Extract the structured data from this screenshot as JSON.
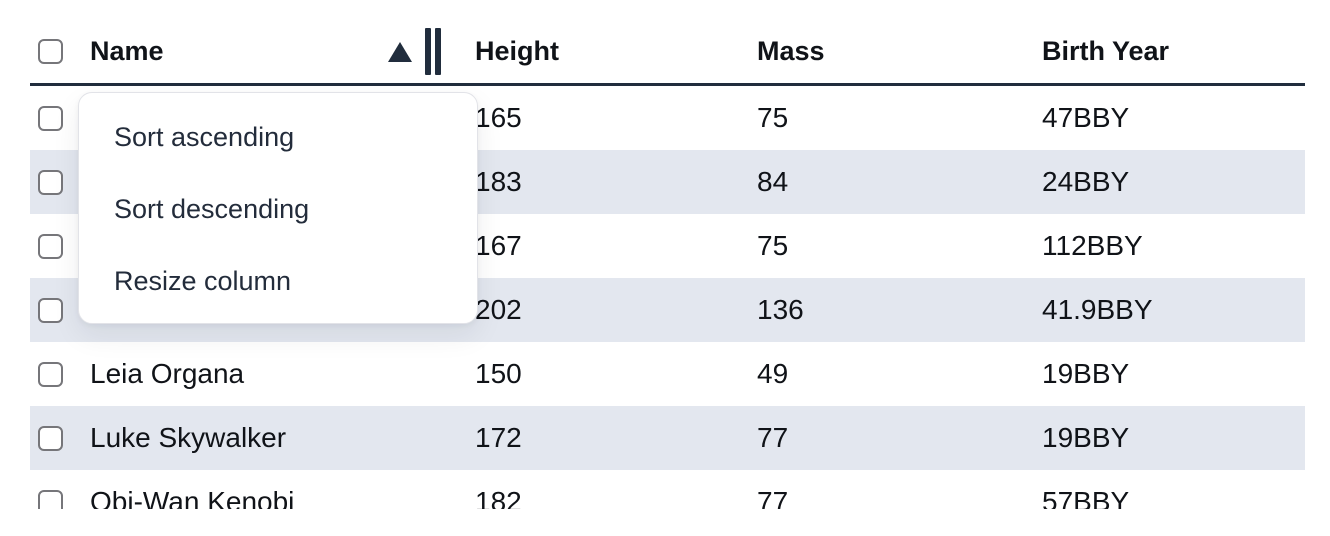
{
  "colors": {
    "stripe": "#e3e7ef",
    "header_border": "#212d3d",
    "icon": "#212d3d",
    "body_text": "#101318",
    "menu_border": "#e2e3e8",
    "menu_text": "#232c3b",
    "checkbox_border": "#76767a"
  },
  "table": {
    "columns": [
      {
        "label": "Name",
        "sorted": "ascending"
      },
      {
        "label": "Height"
      },
      {
        "label": "Mass"
      },
      {
        "label": "Birth Year"
      }
    ],
    "sort_indicator": {
      "column": "Name",
      "direction": "ascending"
    },
    "select_all_checked": false,
    "rows": [
      {
        "name": "",
        "height": "165",
        "mass": "75",
        "birth_year": "47BBY",
        "checked": false
      },
      {
        "name": "",
        "height": "183",
        "mass": "84",
        "birth_year": "24BBY",
        "checked": false
      },
      {
        "name": "",
        "height": "167",
        "mass": "75",
        "birth_year": "112BBY",
        "checked": false
      },
      {
        "name": "",
        "height": "202",
        "mass": "136",
        "birth_year": "41.9BBY",
        "checked": false
      },
      {
        "name": "Leia Organa",
        "height": "150",
        "mass": "49",
        "birth_year": "19BBY",
        "checked": false
      },
      {
        "name": "Luke Skywalker",
        "height": "172",
        "mass": "77",
        "birth_year": "19BBY",
        "checked": false
      },
      {
        "name": "Obi-Wan Kenobi",
        "height": "182",
        "mass": "77",
        "birth_year": "57BBY",
        "checked": false
      }
    ]
  },
  "context_menu": {
    "items": [
      {
        "label": "Sort ascending"
      },
      {
        "label": "Sort descending"
      },
      {
        "label": "Resize column"
      }
    ]
  }
}
